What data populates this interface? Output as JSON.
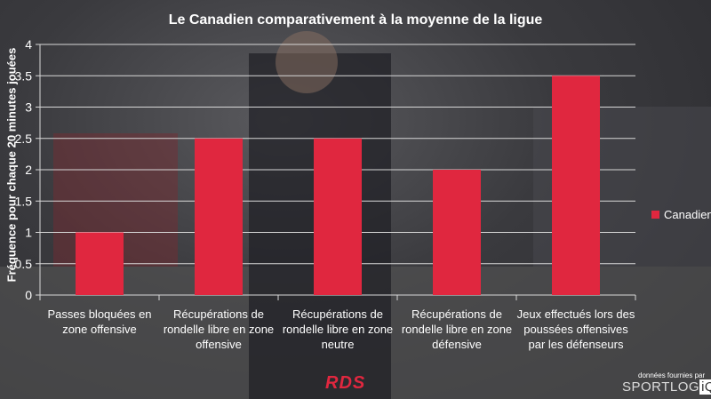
{
  "chart_data": {
    "type": "bar",
    "title": "Le Canadien comparativement à la moyenne de la ligue",
    "ylabel": "Fréquence pour chaque 20 minutes jouées",
    "xlabel": "",
    "ylim": [
      0,
      4
    ],
    "yticks": [
      "0",
      "0.5",
      "1",
      "1.5",
      "2",
      "2.5",
      "3",
      "3.5",
      "4"
    ],
    "grid": true,
    "legend_position": "right",
    "categories": [
      "Passes bloquées en zone offensive",
      "Récupérations de rondelle libre en zone offensive",
      "Récupérations de rondelle libre en zone neutre",
      "Récupérations de rondelle libre en zone défensive",
      "Jeux effectués lors des poussées offensives par les défenseurs"
    ],
    "series": [
      {
        "name": "Canadien",
        "color": "#e0273f",
        "values": [
          1,
          2.5,
          2.5,
          2,
          3.5
        ]
      }
    ]
  },
  "footer": {
    "credit": "données fournies par",
    "brand": "SPORTLOG",
    "brand_box": "iQ",
    "broadcaster": "RDS"
  }
}
